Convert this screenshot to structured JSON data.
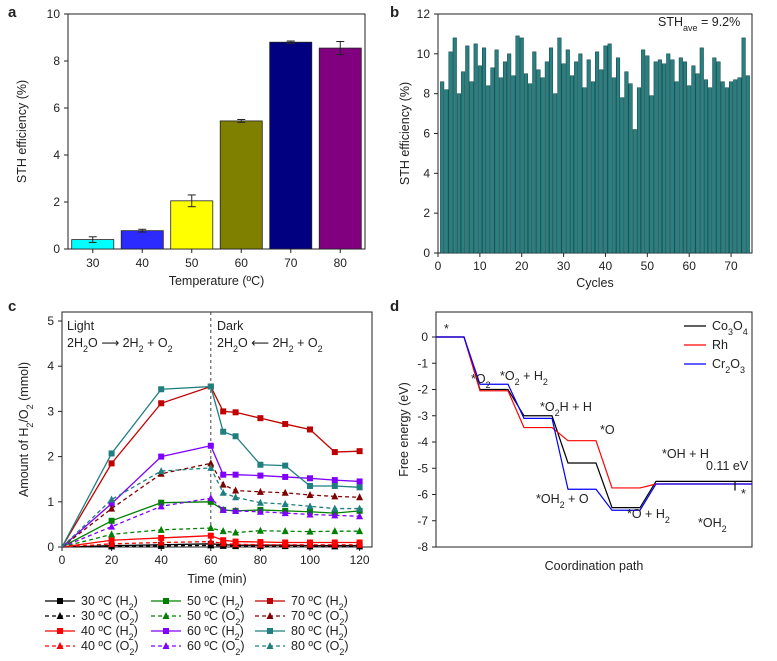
{
  "chart_data": [
    {
      "panel": "a",
      "type": "bar",
      "xlabel": "Temperature (ºC)",
      "ylabel": "STH  efficiency (%)",
      "ylim": [
        0,
        10
      ],
      "yticks": [
        0,
        2,
        4,
        6,
        8,
        10
      ],
      "categories": [
        "30",
        "40",
        "50",
        "60",
        "70",
        "80"
      ],
      "values": [
        0.4,
        0.78,
        2.05,
        5.45,
        8.8,
        8.55
      ],
      "errors": [
        0.12,
        0.06,
        0.25,
        0.06,
        0.05,
        0.28
      ],
      "colors": [
        "#00ffff",
        "#2b2bff",
        "#ffff00",
        "#7f7f00",
        "#000080",
        "#800080"
      ]
    },
    {
      "panel": "b",
      "type": "bar",
      "xlabel": "Cycles",
      "ylabel": "STH  efficiency (%)",
      "ylim": [
        0,
        12
      ],
      "yticks": [
        0,
        2,
        4,
        6,
        8,
        10,
        12
      ],
      "xlim": [
        0,
        75
      ],
      "xticks": [
        0,
        10,
        20,
        30,
        40,
        50,
        60,
        70
      ],
      "annotation": {
        "prefix": "STH",
        "sub": "ave",
        "suffix": " = 9.2%"
      },
      "color": "#2a7f80",
      "x": [
        1,
        2,
        3,
        4,
        5,
        6,
        7,
        8,
        9,
        10,
        11,
        12,
        13,
        14,
        15,
        16,
        17,
        18,
        19,
        20,
        21,
        22,
        23,
        24,
        25,
        26,
        27,
        28,
        29,
        30,
        31,
        32,
        33,
        34,
        35,
        36,
        37,
        38,
        39,
        40,
        41,
        42,
        43,
        44,
        45,
        46,
        47,
        48,
        49,
        50,
        51,
        52,
        53,
        54,
        55,
        56,
        57,
        58,
        59,
        60,
        61,
        62,
        63,
        64,
        65,
        66,
        67,
        68,
        69,
        70,
        71,
        72,
        73,
        74
      ],
      "values": [
        8.6,
        8.2,
        10.1,
        10.8,
        8.0,
        9.1,
        10.4,
        8.6,
        10.5,
        9.4,
        10.3,
        8.4,
        9.3,
        10.2,
        8.8,
        9.6,
        10.0,
        8.9,
        10.9,
        10.8,
        9.0,
        8.5,
        10.1,
        9.2,
        8.8,
        9.6,
        10.3,
        8.0,
        10.8,
        9.5,
        10.2,
        8.9,
        9.6,
        10.0,
        8.3,
        9.7,
        8.6,
        10.1,
        9.2,
        10.4,
        10.5,
        8.8,
        9.8,
        7.8,
        9.1,
        8.5,
        6.2,
        8.3,
        10.2,
        9.9,
        7.9,
        9.6,
        9.7,
        9.5,
        10.0,
        9.7,
        8.6,
        9.8,
        9.6,
        8.4,
        9.4,
        9.0,
        10.3,
        8.7,
        8.3,
        9.8,
        9.6,
        8.6,
        8.3,
        8.6,
        8.7,
        8.8,
        10.8,
        8.9
      ]
    },
    {
      "panel": "c",
      "type": "line",
      "xlabel": "Time (min)",
      "ylabel": {
        "pre": "Amount of H",
        "s1": "2",
        "mid": "/O",
        "s2": "2",
        "post": " (mmol)"
      },
      "xlim": [
        0,
        125
      ],
      "ylim": [
        0,
        5
      ],
      "xticks": [
        0,
        20,
        40,
        60,
        80,
        100,
        120
      ],
      "yticks": [
        0,
        1,
        2,
        3,
        4,
        5
      ],
      "divider_x": 60,
      "light_label": "Light",
      "dark_label": "Dark",
      "light_eq": {
        "a": "2H",
        "a2": "2",
        "b": "O ",
        "arrow": "⟶",
        "c": " 2H",
        "c2": "2",
        "d": " + O",
        "d2": "2"
      },
      "dark_eq": {
        "a": "2H",
        "a2": "2",
        "b": "O ",
        "arrow": "⟵",
        "c": " 2H",
        "c2": "2",
        "d": " + O",
        "d2": "2"
      },
      "x": [
        0,
        20,
        40,
        60,
        65,
        70,
        80,
        90,
        100,
        110,
        120
      ],
      "series": [
        {
          "name": "30 ºC (H",
          "gas": "2",
          "close": ")",
          "color": "#000000",
          "dash": false,
          "marker": "square",
          "values": [
            0,
            0.03,
            0.05,
            0.07,
            0.05,
            0.04,
            0.04,
            0.04,
            0.03,
            0.03,
            0.03
          ]
        },
        {
          "name": "30 ºC (O",
          "gas": "2",
          "close": ")",
          "color": "#000000",
          "dash": true,
          "marker": "triangle",
          "values": [
            0,
            0.015,
            0.025,
            0.035,
            0.025,
            0.02,
            0.02,
            0.02,
            0.015,
            0.015,
            0.015
          ]
        },
        {
          "name": "40 ºC (H",
          "gas": "2",
          "close": ")",
          "color": "#ff0000",
          "dash": false,
          "marker": "square",
          "values": [
            0,
            0.15,
            0.2,
            0.25,
            0.15,
            0.12,
            0.11,
            0.1,
            0.1,
            0.1,
            0.1
          ]
        },
        {
          "name": "40 ºC (O",
          "gas": "2",
          "close": ")",
          "color": "#ff0000",
          "dash": true,
          "marker": "triangle",
          "values": [
            0,
            0.07,
            0.1,
            0.12,
            0.08,
            0.06,
            0.05,
            0.05,
            0.05,
            0.05,
            0.05
          ]
        },
        {
          "name": "50 ºC (H",
          "gas": "2",
          "close": ")",
          "color": "#008000",
          "dash": false,
          "marker": "square",
          "values": [
            0,
            0.58,
            0.98,
            1.0,
            0.82,
            0.8,
            0.82,
            0.8,
            0.78,
            0.75,
            0.8
          ]
        },
        {
          "name": "50 ºC (O",
          "gas": "2",
          "close": ")",
          "color": "#008000",
          "dash": true,
          "marker": "triangle",
          "values": [
            0,
            0.28,
            0.38,
            0.42,
            0.35,
            0.32,
            0.36,
            0.35,
            0.34,
            0.35,
            0.35
          ]
        },
        {
          "name": "60 ºC (H",
          "gas": "2",
          "close": ")",
          "color": "#8000ff",
          "dash": false,
          "marker": "square",
          "values": [
            0,
            0.96,
            2.0,
            2.24,
            1.6,
            1.6,
            1.58,
            1.55,
            1.52,
            1.48,
            1.45
          ]
        },
        {
          "name": "60 ºC (O",
          "gas": "2",
          "close": ")",
          "color": "#8000ff",
          "dash": true,
          "marker": "triangle",
          "values": [
            0,
            0.45,
            0.9,
            1.08,
            0.82,
            0.8,
            0.78,
            0.75,
            0.72,
            0.7,
            0.68
          ]
        },
        {
          "name": "70 ºC (H",
          "gas": "2",
          "close": ")",
          "color": "#c00000",
          "dash": false,
          "marker": "square",
          "values": [
            0,
            1.85,
            3.18,
            3.55,
            3.0,
            2.98,
            2.85,
            2.72,
            2.6,
            2.1,
            2.12
          ]
        },
        {
          "name": "70 ºC (O",
          "gas": "2",
          "close": ")",
          "color": "#800000",
          "dash": true,
          "marker": "triangle",
          "values": [
            0,
            0.85,
            1.62,
            1.85,
            1.38,
            1.25,
            1.22,
            1.2,
            1.15,
            1.12,
            1.1
          ]
        },
        {
          "name": "80 ºC (H",
          "gas": "2",
          "close": ")",
          "color": "#1f7f7f",
          "dash": false,
          "marker": "square",
          "values": [
            0,
            2.07,
            3.49,
            3.55,
            2.55,
            2.45,
            1.82,
            1.8,
            1.35,
            1.35,
            1.32
          ]
        },
        {
          "name": "80 ºC (O",
          "gas": "2",
          "close": ")",
          "color": "#1f7f7f",
          "dash": true,
          "marker": "triangle",
          "values": [
            0,
            1.05,
            1.68,
            1.75,
            1.2,
            1.1,
            0.98,
            0.95,
            0.9,
            0.85,
            0.85
          ]
        }
      ]
    },
    {
      "panel": "d",
      "type": "line",
      "xlabel": "Coordination path",
      "ylabel": "Free energy (eV)",
      "ylim": [
        -8,
        0
      ],
      "yticks": [
        0,
        -1,
        -2,
        -3,
        -4,
        -5,
        -6,
        -7,
        -8
      ],
      "steps": 6,
      "series": [
        {
          "name": "Co",
          "sub1": "3",
          "mid": "O",
          "sub2": "4",
          "color": "#000000",
          "levels": [
            0,
            -2.0,
            -3.0,
            -4.8,
            -6.5,
            -5.5
          ]
        },
        {
          "name": "Rh",
          "color": "#ff0000",
          "levels": [
            0,
            -2.05,
            -3.45,
            -3.95,
            -5.75,
            -5.6
          ]
        },
        {
          "name": "Cr",
          "sub1": "2",
          "mid": "O",
          "sub2": "3",
          "color": "#0000ff",
          "levels": [
            0,
            -1.8,
            -3.1,
            -5.8,
            -6.6,
            -5.6
          ]
        }
      ],
      "labels": {
        "star": "*",
        "o2": {
          "t": "*O",
          "s": "2"
        },
        "o2h2": {
          "t": "*O",
          "s": "2",
          "t2": " + H",
          "s2": "2"
        },
        "o2hh": {
          "t": "*O",
          "s": "2",
          "t2": "H + H"
        },
        "o": "*O",
        "ohh": "*OH + H",
        "oh2o": {
          "t": "*OH",
          "s": "2",
          "t2": " + O"
        },
        "oh2": {
          "t": "*O + H",
          "s": "2"
        },
        "oh2b": {
          "t": "*OH",
          "s": "2"
        },
        "gap": "0.11 eV",
        "star2": "*"
      }
    }
  ]
}
